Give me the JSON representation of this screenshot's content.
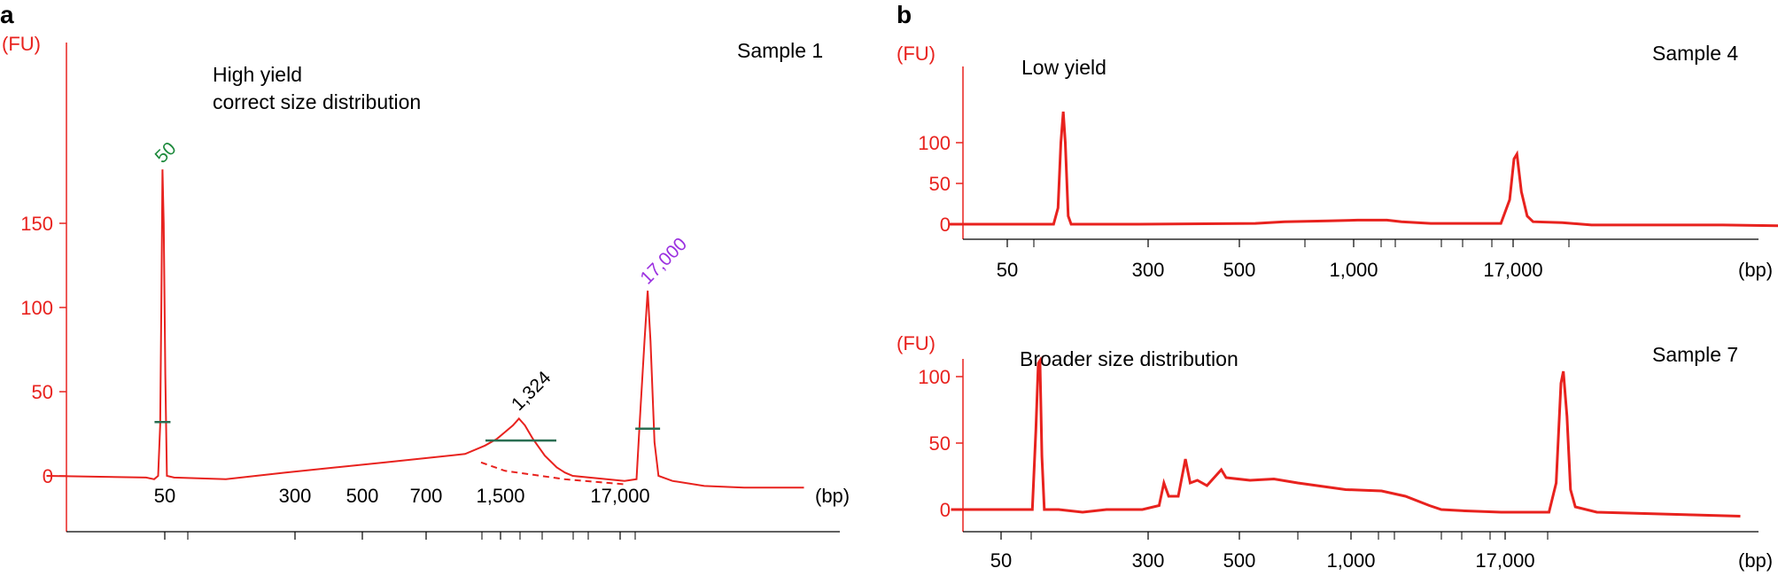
{
  "colors": {
    "trace": "#e8221e",
    "axis": "#e8221e",
    "marker_line": "#2a6e52",
    "peak_50": "#1d8a3c",
    "peak_17000": "#9b30e0",
    "peak_1324": "#000000"
  },
  "chart_data": [
    {
      "panel": "a",
      "type": "line",
      "title": "Sample 1",
      "annotation": [
        "High yield",
        "correct size distribution"
      ],
      "ylabel": "(FU)",
      "xlabel": "(bp)",
      "ylim": [
        -25,
        200
      ],
      "yticks": [
        0,
        50,
        100,
        150
      ],
      "xticks": [
        "50",
        "300",
        "500",
        "700",
        "1,500",
        "17,000"
      ],
      "peak_labels": [
        {
          "label": "50",
          "x": "50",
          "y": 182
        },
        {
          "label": "1,324",
          "x": "1,324",
          "y": 35
        },
        {
          "label": "17,000",
          "x": "17,000",
          "y": 110
        }
      ],
      "series": [
        {
          "values": [
            [
              -5,
              0
            ],
            [
              20,
              -1
            ],
            [
              22,
              -2
            ],
            [
              23,
              0
            ],
            [
              23.5,
              30
            ],
            [
              23.8,
              100
            ],
            [
              24.1,
              182
            ],
            [
              24.4,
              150
            ],
            [
              24.8,
              60
            ],
            [
              25.2,
              0
            ],
            [
              27,
              -1
            ],
            [
              40,
              -2
            ],
            [
              55,
              2
            ],
            [
              80,
              8
            ],
            [
              100,
              13
            ],
            [
              105,
              18
            ],
            [
              108,
              22
            ],
            [
              110,
              26
            ],
            [
              112,
              30
            ],
            [
              113.5,
              34
            ],
            [
              115,
              30
            ],
            [
              117,
              22
            ],
            [
              120,
              12
            ],
            [
              123,
              5
            ],
            [
              125,
              2
            ],
            [
              127,
              0
            ],
            [
              140,
              -3
            ],
            [
              143,
              -2
            ],
            [
              144,
              40
            ],
            [
              145,
              80
            ],
            [
              145.8,
              110
            ],
            [
              146.5,
              80
            ],
            [
              147.5,
              20
            ],
            [
              148.5,
              0
            ],
            [
              152,
              -3
            ],
            [
              160,
              -6
            ],
            [
              170,
              -7
            ],
            [
              185,
              -7
            ]
          ],
          "baseline": [
            [
              104,
              8
            ],
            [
              110,
              3
            ],
            [
              125,
              -2
            ],
            [
              140,
              -5
            ]
          ],
          "size_markers": [
            [
              24.1,
              32
            ],
            [
              114,
              21
            ],
            [
              145.8,
              28
            ]
          ]
        }
      ]
    },
    {
      "panel": "b",
      "type": "line",
      "title": "Sample 4",
      "annotation": [
        "Low yield"
      ],
      "ylabel": "(FU)",
      "xlabel": "(bp)",
      "ylim": [
        -10,
        140
      ],
      "yticks": [
        0,
        50,
        100
      ],
      "xticks": [
        "50",
        "300",
        "500",
        "1,000",
        "17,000"
      ],
      "series": [
        {
          "values": [
            [
              -5,
              0
            ],
            [
              31,
              0
            ],
            [
              32.5,
              20
            ],
            [
              33.5,
              100
            ],
            [
              34.3,
              138
            ],
            [
              35,
              100
            ],
            [
              36,
              10
            ],
            [
              37,
              0
            ],
            [
              60,
              0
            ],
            [
              100,
              1
            ],
            [
              110,
              3
            ],
            [
              125,
              4
            ],
            [
              135,
              5
            ],
            [
              145,
              5
            ],
            [
              150,
              3
            ],
            [
              160,
              1
            ],
            [
              184,
              1
            ],
            [
              187,
              30
            ],
            [
              188.5,
              80
            ],
            [
              189.5,
              86
            ],
            [
              191,
              40
            ],
            [
              193,
              10
            ],
            [
              195,
              3
            ],
            [
              205,
              2
            ],
            [
              215,
              -1
            ],
            [
              260,
              -1
            ],
            [
              280,
              -2
            ],
            [
              295,
              -2
            ]
          ]
        }
      ]
    },
    {
      "panel": "b",
      "type": "line",
      "title": "Sample 7",
      "annotation": [
        "Broader size distribution"
      ],
      "ylabel": "(FU)",
      "xlabel": "(bp)",
      "ylim": [
        -10,
        120
      ],
      "yticks": [
        0,
        50,
        100
      ],
      "xticks": [
        "50",
        "300",
        "500",
        "1,000",
        "17,000"
      ],
      "series": [
        {
          "values": [
            [
              -5,
              0
            ],
            [
              29,
              0
            ],
            [
              30.5,
              60
            ],
            [
              31.5,
              110
            ],
            [
              32.2,
              112
            ],
            [
              33,
              40
            ],
            [
              34,
              0
            ],
            [
              40,
              0
            ],
            [
              50,
              -2
            ],
            [
              60,
              0
            ],
            [
              75,
              0
            ],
            [
              82,
              3
            ],
            [
              84,
              20
            ],
            [
              86,
              10
            ],
            [
              90,
              10
            ],
            [
              93,
              38
            ],
            [
              95,
              20
            ],
            [
              98,
              22
            ],
            [
              102,
              18
            ],
            [
              106,
              26
            ],
            [
              108,
              30
            ],
            [
              110,
              24
            ],
            [
              120,
              22
            ],
            [
              130,
              23
            ],
            [
              140,
              20
            ],
            [
              160,
              15
            ],
            [
              175,
              14
            ],
            [
              185,
              10
            ],
            [
              195,
              3
            ],
            [
              200,
              0
            ],
            [
              210,
              -1
            ],
            [
              225,
              -2
            ],
            [
              245,
              -2
            ],
            [
              248,
              20
            ],
            [
              250,
              95
            ],
            [
              251,
              104
            ],
            [
              252.5,
              70
            ],
            [
              254,
              15
            ],
            [
              256,
              2
            ],
            [
              265,
              -2
            ],
            [
              285,
              -3
            ],
            [
              305,
              -4
            ],
            [
              325,
              -5
            ]
          ]
        }
      ]
    }
  ]
}
